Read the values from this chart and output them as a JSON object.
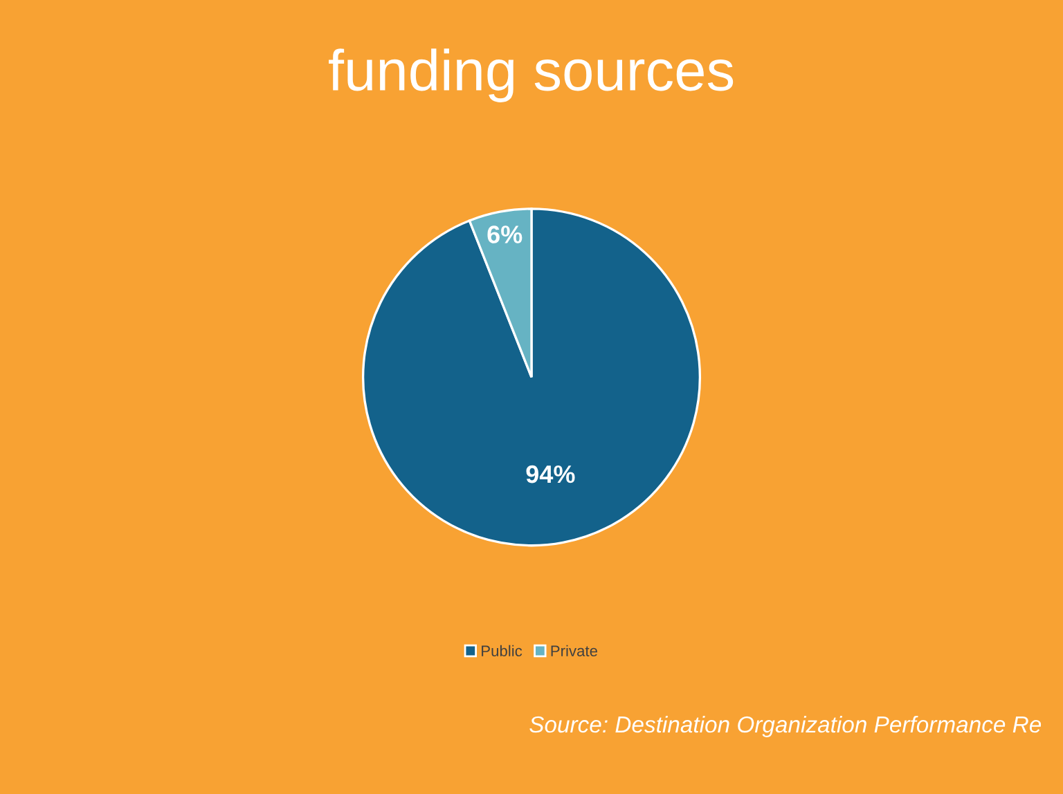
{
  "chart_data": {
    "type": "pie",
    "title": "funding sources",
    "categories": [
      "Public",
      "Private"
    ],
    "values": [
      94,
      6
    ],
    "colors": [
      "#13628b",
      "#66b3c3"
    ],
    "value_labels": [
      "94%",
      "6%"
    ],
    "legend": "bottom",
    "annotations": [
      "Source: Destination Organization Performance Re"
    ]
  }
}
